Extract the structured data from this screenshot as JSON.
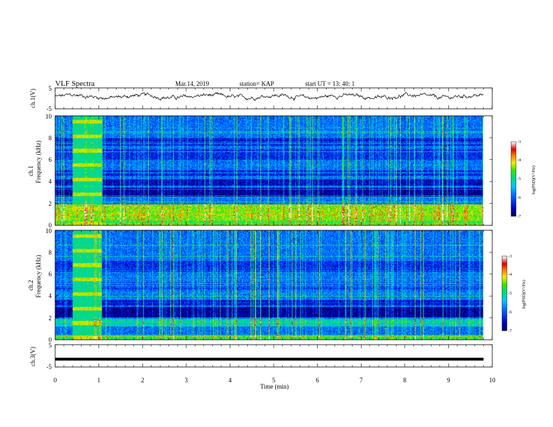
{
  "header": {
    "title": "VLF Spectra",
    "date": "Mar.14, 2019",
    "station": "station= KAP",
    "start": "start  UT =   13: 40: 1"
  },
  "chart_data": [
    {
      "type": "line",
      "name": "ch1-waveform",
      "ylabel": "ch.1(V)",
      "ylim": [
        -5,
        5
      ],
      "yticks": [
        "5",
        "-5"
      ],
      "xlim": [
        0,
        10
      ],
      "series": [
        {
          "values_note": "noisy waveform around +1 V, amplitude ~1.5 V, ending at 9.8 min"
        }
      ],
      "data_end_min": 9.8
    },
    {
      "type": "heatmap",
      "name": "ch1-spectrogram",
      "ylabel": "ch.1",
      "ylabel2": "Frequency (kHz)",
      "ylim": [
        0,
        10
      ],
      "yticks": [
        "0",
        "2",
        "4",
        "6",
        "8",
        "10"
      ],
      "xlim": [
        0,
        10
      ],
      "data_end_min": 9.8,
      "colorbar": {
        "min": -7,
        "max": -3,
        "ticks": [
          "-3",
          "-4",
          "-5",
          "-6",
          "-7"
        ],
        "label": "log(PSD)(V²/Hz)"
      },
      "bands": [
        {
          "f": [
            0,
            0.4
          ],
          "level": -4.8
        },
        {
          "f": [
            0.4,
            1.9
          ],
          "level": -4.5
        },
        {
          "f": [
            2.6,
            3.4
          ],
          "level": -6.9
        },
        {
          "f": [
            3.6,
            4.2
          ],
          "level": -6.7
        },
        {
          "f": [
            4.5,
            5.0
          ],
          "level": -6.5
        },
        {
          "f": [
            6.0,
            7.0
          ],
          "level": -6.4
        },
        {
          "f": [
            7.3,
            8.0
          ],
          "level": -6.6
        }
      ],
      "burst": {
        "t": [
          0.4,
          1.05
        ],
        "level": -5.0
      }
    },
    {
      "type": "heatmap",
      "name": "ch2-spectrogram",
      "ylabel": "ch.2",
      "ylabel2": "Frequency (kHz)",
      "ylim": [
        0,
        10
      ],
      "yticks": [
        "0",
        "2",
        "4",
        "6",
        "8",
        "10"
      ],
      "xlim": [
        0,
        10
      ],
      "data_end_min": 9.8,
      "colorbar": {
        "min": -7,
        "max": -3,
        "ticks": [
          "-3",
          "-4",
          "-5",
          "-6",
          "-7"
        ],
        "label": "log(PSD)(V²/Hz)"
      },
      "bands": [
        {
          "f": [
            0,
            0.4
          ],
          "level": -5.0
        },
        {
          "f": [
            1.2,
            1.9
          ],
          "level": -5.4
        },
        {
          "f": [
            2.0,
            3.0
          ],
          "level": -6.9
        },
        {
          "f": [
            3.1,
            3.6
          ],
          "level": -6.6
        },
        {
          "f": [
            4.6,
            5.2
          ],
          "level": -6.3
        },
        {
          "f": [
            6.2,
            7.2
          ],
          "level": -6.4
        }
      ],
      "burst": {
        "t": [
          0.4,
          1.05
        ],
        "level": -5.0
      }
    },
    {
      "type": "line",
      "name": "ch3-waveform",
      "ylabel": "ch.3(V)",
      "ylim": [
        -5,
        5
      ],
      "yticks": [
        "5",
        "-5"
      ],
      "xlim": [
        0,
        10
      ],
      "xlabel": "Time  (min)",
      "xticks": [
        "0",
        "1",
        "2",
        "3",
        "4",
        "5",
        "6",
        "7",
        "8",
        "9",
        "10"
      ],
      "series": [
        {
          "values_note": "flat line at -1.5 V"
        }
      ],
      "level": -1.5,
      "data_end_min": 9.8
    }
  ]
}
